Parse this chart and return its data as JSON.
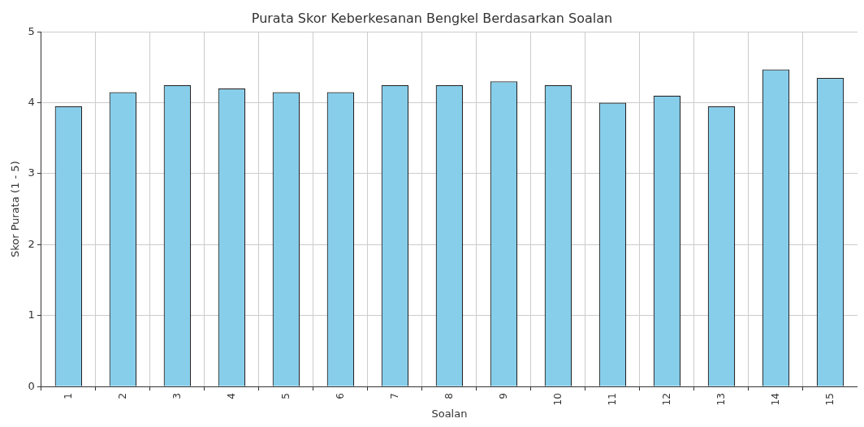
{
  "chart_data": {
    "type": "bar",
    "title": "Purata Skor Keberkesanan Bengkel Berdasarkan Soalan",
    "xlabel": "Soalan",
    "ylabel": "Skor Purata (1 - 5)",
    "categories": [
      "1",
      "2",
      "3",
      "4",
      "5",
      "6",
      "7",
      "8",
      "9",
      "10",
      "11",
      "12",
      "13",
      "14",
      "15"
    ],
    "values": [
      3.95,
      4.15,
      4.25,
      4.2,
      4.15,
      4.15,
      4.25,
      4.25,
      4.3,
      4.25,
      4.0,
      4.1,
      3.95,
      4.47,
      4.35
    ],
    "color": "#87ceeb",
    "ylim": [
      0,
      5
    ],
    "yticks": [
      0,
      1,
      2,
      3,
      4,
      5
    ],
    "grid": true,
    "legend": false
  }
}
